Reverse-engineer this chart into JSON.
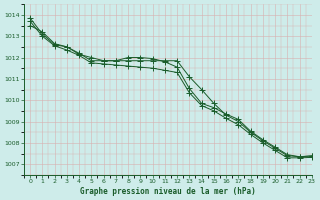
{
  "title": "Graphe pression niveau de la mer (hPa)",
  "background_color": "#ceecea",
  "grid_color": "#aed4d0",
  "line_color": "#1a5c2a",
  "xlim": [
    -0.5,
    23
  ],
  "ylim": [
    1006.5,
    1014.5
  ],
  "yticks": [
    1007,
    1008,
    1009,
    1010,
    1011,
    1012,
    1013,
    1014
  ],
  "xticks": [
    0,
    1,
    2,
    3,
    4,
    5,
    6,
    7,
    8,
    9,
    10,
    11,
    12,
    13,
    14,
    15,
    16,
    17,
    18,
    19,
    20,
    21,
    22,
    23
  ],
  "line1_x": [
    0,
    1,
    2,
    3,
    4,
    5,
    6,
    7,
    8,
    9,
    10,
    11,
    12,
    13,
    14,
    15,
    16,
    17,
    18,
    19,
    20,
    21,
    22,
    23
  ],
  "line1_y": [
    1013.5,
    1013.2,
    1012.65,
    1012.5,
    1012.15,
    1012.0,
    1011.85,
    1011.85,
    1012.0,
    1012.0,
    1011.95,
    1011.8,
    1011.55,
    1010.55,
    1009.85,
    1009.65,
    1009.35,
    1009.1,
    1008.55,
    1008.15,
    1007.8,
    1007.45,
    1007.35,
    1007.4
  ],
  "line2_x": [
    0,
    1,
    2,
    3,
    4,
    5,
    6,
    7,
    8,
    9,
    10,
    11,
    12,
    13,
    14,
    15,
    16,
    17,
    18,
    19,
    20,
    21,
    22,
    23
  ],
  "line2_y": [
    1013.85,
    1013.1,
    1012.6,
    1012.5,
    1012.2,
    1011.85,
    1011.85,
    1011.85,
    1011.85,
    1011.85,
    1011.85,
    1011.85,
    1011.85,
    1011.1,
    1010.5,
    1009.85,
    1009.3,
    1009.0,
    1008.5,
    1008.1,
    1007.75,
    1007.4,
    1007.35,
    1007.38
  ],
  "line3_x": [
    0,
    1,
    2,
    3,
    4,
    5,
    6,
    7,
    8,
    9,
    10,
    11,
    12,
    13,
    14,
    15,
    16,
    17,
    18,
    19,
    20,
    21,
    22,
    23
  ],
  "line3_y": [
    1013.7,
    1013.0,
    1012.55,
    1012.35,
    1012.1,
    1011.75,
    1011.7,
    1011.65,
    1011.6,
    1011.55,
    1011.5,
    1011.4,
    1011.3,
    1010.35,
    1009.75,
    1009.5,
    1009.15,
    1008.85,
    1008.4,
    1008.0,
    1007.65,
    1007.3,
    1007.3,
    1007.32
  ]
}
